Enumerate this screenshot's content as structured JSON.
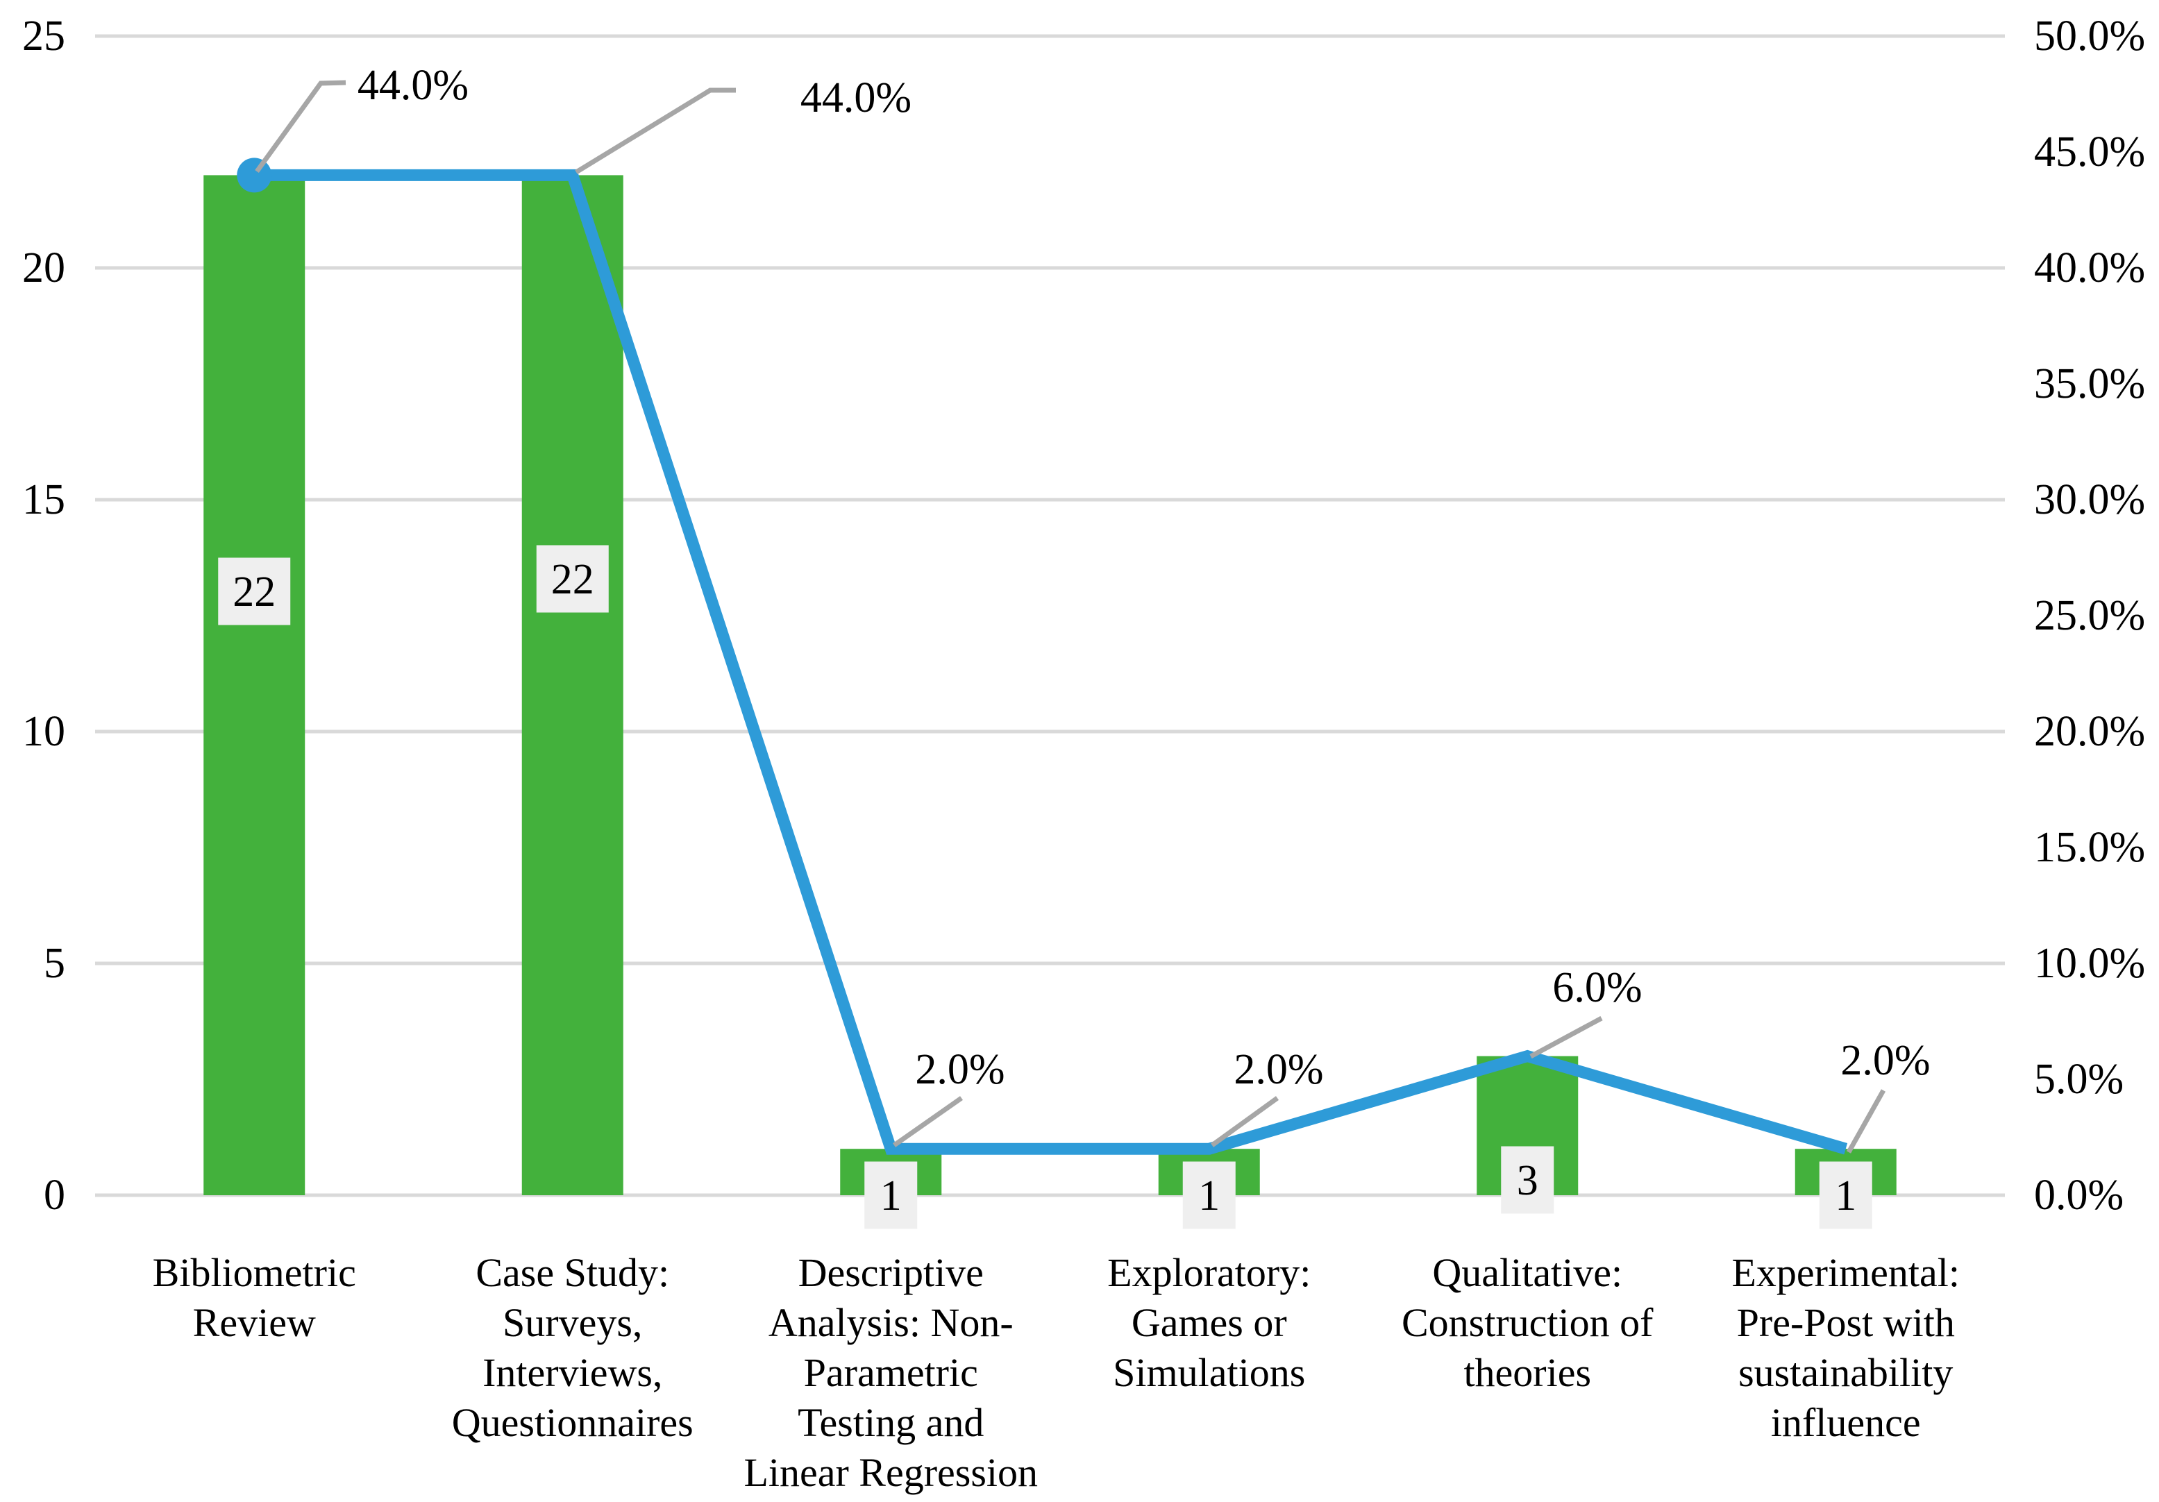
{
  "chart_data": {
    "type": "combo (bar + line, dual axis)",
    "title": "",
    "legend": "none",
    "grid": "horizontal gridlines at left-axis major ticks (every 5 units / 10%)",
    "categories": [
      "Bibliometric\nReview",
      "Case Study:\nSurveys,\nInterviews,\nQuestionnaires",
      "Descriptive\nAnalysis: Non-\nParametric\nTesting and\nLinear Regression",
      "Exploratory:\nGames or\nSimulations",
      "Qualitative:\nConstruction of\ntheories",
      "Experimental:\nPre-Post with\nsustainability\ninfluence"
    ],
    "series": [
      {
        "name": "count-bars",
        "type": "bar",
        "axis": "left",
        "values": [
          22,
          22,
          1,
          1,
          3,
          1
        ],
        "value_labels": [
          "22",
          "22",
          "1",
          "1",
          "3",
          "1"
        ],
        "color": "#43B13C"
      },
      {
        "name": "percentage-line",
        "type": "line",
        "axis": "right",
        "values_percent": [
          44.0,
          44.0,
          2.0,
          2.0,
          6.0,
          2.0
        ],
        "point_labels": [
          "44.0%",
          "44.0%",
          "2.0%",
          "2.0%",
          "6.0%",
          "2.0%"
        ],
        "color": "#2E9BD8",
        "marker_on_first_point": true
      }
    ],
    "left_axis": {
      "min": 0,
      "max": 25,
      "tick_labels": [
        "25",
        "20",
        "15",
        "10",
        "5",
        "0"
      ]
    },
    "right_axis": {
      "min": 0,
      "max": 50,
      "tick_labels": [
        "50.0%",
        "45.0%",
        "40.0%",
        "35.0%",
        "30.0%",
        "25.0%",
        "20.0%",
        "15.0%",
        "10.0%",
        "5.0%",
        "0.0%"
      ]
    },
    "colors": {
      "bar_fill": "#43B13C",
      "line_stroke": "#2E9BD8",
      "gridline": "#D9D9D9",
      "leader_line": "#A6A6A6",
      "data_label_box_fill": "#EFEFEF",
      "text": "#000000",
      "background": "#FFFFFF"
    }
  }
}
